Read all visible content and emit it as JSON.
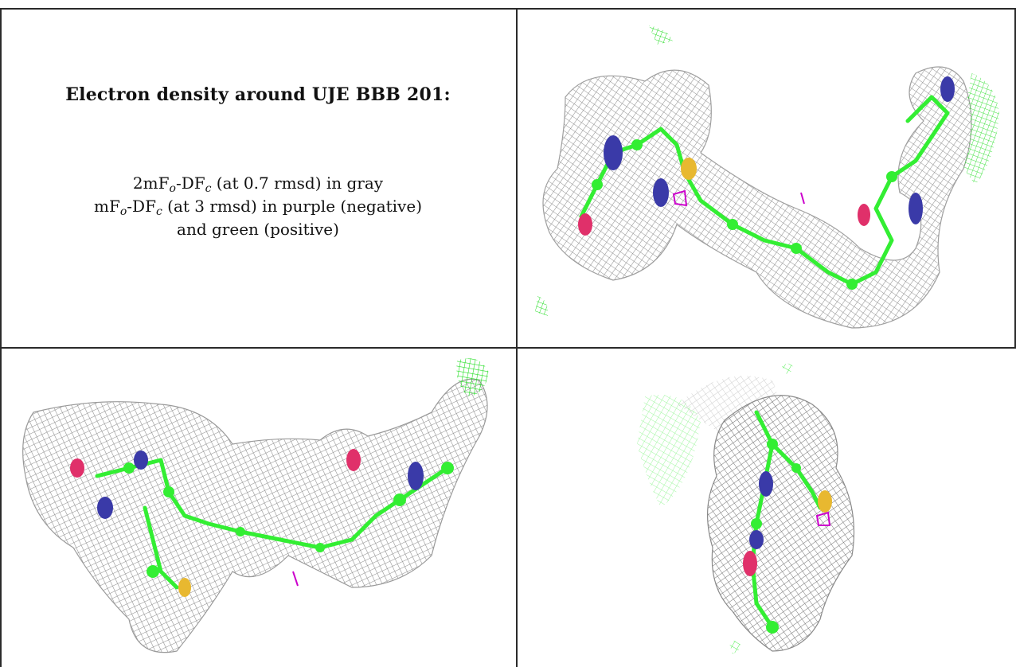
{
  "title": "Electron density around UJE BBB 201:",
  "legend": {
    "line1": {
      "prefix": "2mF",
      "sub1": "o",
      "mid": "-DF",
      "sub2": "c",
      "suffix": " (at 0.7 rmsd) in gray"
    },
    "line2": {
      "prefix": "mF",
      "sub1": "o",
      "mid": "-DF",
      "sub2": "c",
      "suffix": " (at 3 rmsd) in purple (negative)"
    },
    "line3": "and green (positive)"
  },
  "colors": {
    "mesh_gray": "#9a9a9a",
    "carbon_green": "#33ee33",
    "nitrogen_blue": "#3a3aa8",
    "oxygen_red": "#e0306a",
    "sulfur_yellow": "#e8b830",
    "negative_purple": "#cc00cc",
    "positive_green": "#22dd22"
  },
  "panels": [
    {
      "view": "top-right",
      "icon": "electron-density-mesh-icon"
    },
    {
      "view": "bottom-left",
      "icon": "electron-density-mesh-icon"
    },
    {
      "view": "bottom-right",
      "icon": "electron-density-mesh-icon"
    }
  ]
}
